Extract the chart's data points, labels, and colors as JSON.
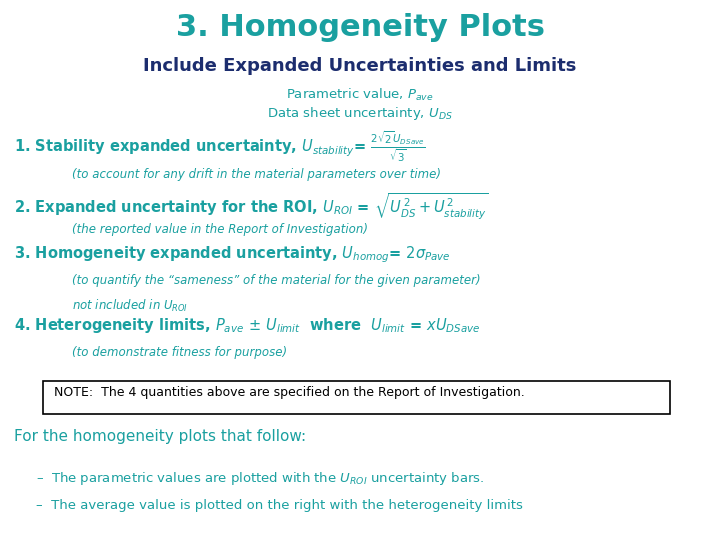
{
  "title": "3. Homogeneity Plots",
  "title_color": "#1AA0A0",
  "subtitle": "Include Expanded Uncertainties and Limits",
  "subtitle_color": "#1C2D6E",
  "bg_color": "#FFFFFF",
  "teal": "#1AA0A0",
  "dark_blue": "#1C2D6E",
  "note": "NOTE:  The 4 quantities above are specified on the Report of Investigation.",
  "footer_title": "For the homogeneity plots that follow:",
  "footer_item1": "The parametric values are plotted with the $U_{ROI}$ uncertainty bars.",
  "footer_item2": "The average value is plotted on the right with the heterogeneity limits"
}
